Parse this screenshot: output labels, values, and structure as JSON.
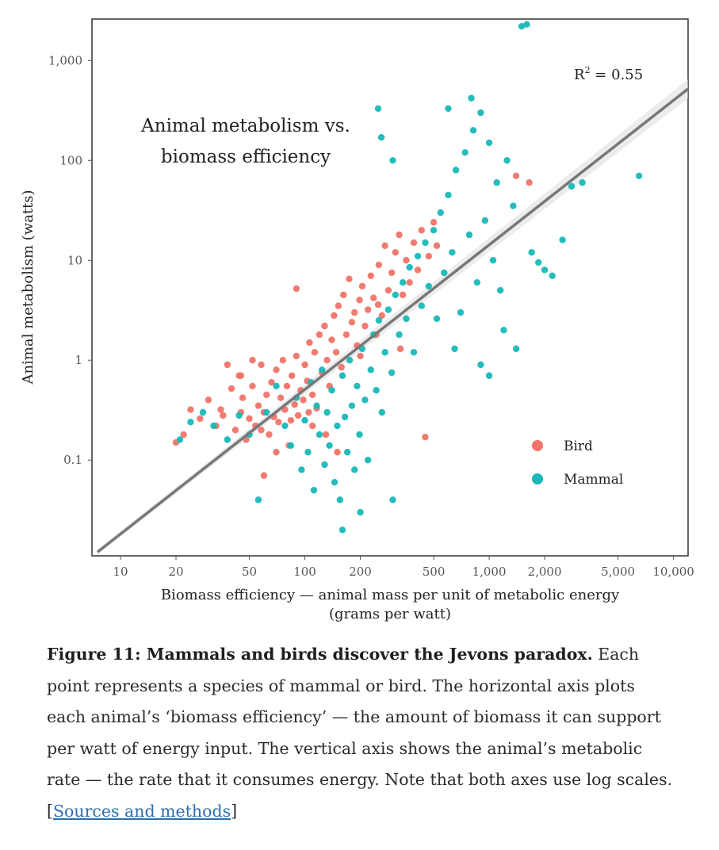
{
  "chart_data": {
    "type": "scatter",
    "title": "Animal metabolism vs. biomass efficiency",
    "title_lines": [
      "Animal metabolism vs.",
      "biomass efficiency"
    ],
    "xlabel": "Biomass efficiency — animal mass per unit of metabolic energy",
    "xlabel_units": "(grams per watt)",
    "ylabel": "Animal metabolism (watts)",
    "x_scale": "log",
    "y_scale": "log",
    "xlim": [
      7,
      12000
    ],
    "ylim": [
      0.011,
      2600
    ],
    "x_ticks": [
      {
        "value": 10,
        "label": "10"
      },
      {
        "value": 20,
        "label": "20"
      },
      {
        "value": 50,
        "label": "50"
      },
      {
        "value": 100,
        "label": "100"
      },
      {
        "value": 200,
        "label": "200"
      },
      {
        "value": 500,
        "label": "500"
      },
      {
        "value": 1000,
        "label": "1,000"
      },
      {
        "value": 2000,
        "label": "2,000"
      },
      {
        "value": 5000,
        "label": "5,000"
      },
      {
        "value": 10000,
        "label": "10,000"
      }
    ],
    "y_ticks": [
      {
        "value": 0.1,
        "label": "0.1"
      },
      {
        "value": 1,
        "label": "1"
      },
      {
        "value": 10,
        "label": "10"
      },
      {
        "value": 100,
        "label": "100"
      },
      {
        "value": 1000,
        "label": "1,000"
      }
    ],
    "annotation": {
      "text": "R² = 0.55",
      "base": "R",
      "sup": "2",
      "rest": " = 0.55"
    },
    "fit_line": {
      "from": [
        7.5,
        0.012
      ],
      "to": [
        12000,
        520
      ]
    },
    "legend": {
      "placement": "bottom-right"
    },
    "grid": false,
    "series": [
      {
        "name": "Bird",
        "color": "#f07468",
        "points": [
          [
            20,
            0.15
          ],
          [
            22,
            0.18
          ],
          [
            24,
            0.32
          ],
          [
            27,
            0.26
          ],
          [
            30,
            0.4
          ],
          [
            33,
            0.22
          ],
          [
            35,
            0.32
          ],
          [
            38,
            0.9
          ],
          [
            40,
            0.52
          ],
          [
            42,
            0.2
          ],
          [
            44,
            0.7
          ],
          [
            45,
            0.3
          ],
          [
            46,
            0.42
          ],
          [
            48,
            0.16
          ],
          [
            50,
            0.26
          ],
          [
            52,
            0.55
          ],
          [
            54,
            0.22
          ],
          [
            56,
            0.35
          ],
          [
            58,
            0.9
          ],
          [
            60,
            0.3
          ],
          [
            62,
            0.45
          ],
          [
            64,
            0.18
          ],
          [
            66,
            0.6
          ],
          [
            68,
            0.27
          ],
          [
            70,
            0.8
          ],
          [
            72,
            0.24
          ],
          [
            74,
            0.42
          ],
          [
            76,
            1.0
          ],
          [
            78,
            0.32
          ],
          [
            80,
            0.55
          ],
          [
            82,
            0.14
          ],
          [
            85,
            0.7
          ],
          [
            88,
            0.36
          ],
          [
            90,
            1.1
          ],
          [
            92,
            0.28
          ],
          [
            95,
            0.5
          ],
          [
            98,
            0.4
          ],
          [
            100,
            0.9
          ],
          [
            103,
            0.62
          ],
          [
            106,
            1.5
          ],
          [
            110,
            0.45
          ],
          [
            113,
            1.2
          ],
          [
            116,
            0.33
          ],
          [
            120,
            1.8
          ],
          [
            124,
            0.75
          ],
          [
            128,
            2.2
          ],
          [
            132,
            1.0
          ],
          [
            136,
            0.55
          ],
          [
            140,
            1.6
          ],
          [
            144,
            2.8
          ],
          [
            148,
            1.2
          ],
          [
            152,
            3.5
          ],
          [
            158,
            0.85
          ],
          [
            162,
            4.5
          ],
          [
            168,
            1.8
          ],
          [
            174,
            6.5
          ],
          [
            180,
            2.4
          ],
          [
            186,
            3.0
          ],
          [
            192,
            1.4
          ],
          [
            198,
            4.0
          ],
          [
            205,
            5.5
          ],
          [
            212,
            2.2
          ],
          [
            220,
            3.2
          ],
          [
            228,
            7.0
          ],
          [
            236,
            4.2
          ],
          [
            244,
            1.8
          ],
          [
            252,
            9.0
          ],
          [
            262,
            2.8
          ],
          [
            272,
            14
          ],
          [
            284,
            5.0
          ],
          [
            296,
            7.5
          ],
          [
            310,
            12
          ],
          [
            325,
            18
          ],
          [
            340,
            4.5
          ],
          [
            355,
            10
          ],
          [
            370,
            6.0
          ],
          [
            390,
            15
          ],
          [
            410,
            8.0
          ],
          [
            430,
            20
          ],
          [
            450,
            0.17
          ],
          [
            470,
            11
          ],
          [
            500,
            24
          ],
          [
            520,
            14
          ],
          [
            90,
            5.2
          ],
          [
            60,
            0.07
          ],
          [
            150,
            0.12
          ],
          [
            52,
            1.0
          ],
          [
            45,
            0.7
          ],
          [
            200,
            1.1
          ],
          [
            250,
            3.6
          ],
          [
            1400,
            70
          ],
          [
            1650,
            60
          ],
          [
            330,
            1.3
          ],
          [
            110,
            0.22
          ],
          [
            130,
            0.18
          ],
          [
            70,
            0.12
          ],
          [
            36,
            0.28
          ],
          [
            58,
            0.2
          ],
          [
            84,
            0.25
          ],
          [
            105,
            0.3
          ]
        ]
      },
      {
        "name": "Mammal",
        "color": "#19b8b8",
        "points": [
          [
            21,
            0.16
          ],
          [
            24,
            0.24
          ],
          [
            28,
            0.3
          ],
          [
            32,
            0.22
          ],
          [
            38,
            0.16
          ],
          [
            44,
            0.28
          ],
          [
            50,
            0.18
          ],
          [
            56,
            0.04
          ],
          [
            62,
            0.3
          ],
          [
            70,
            0.55
          ],
          [
            78,
            0.22
          ],
          [
            84,
            0.14
          ],
          [
            90,
            0.42
          ],
          [
            96,
            0.08
          ],
          [
            100,
            0.25
          ],
          [
            104,
            0.12
          ],
          [
            108,
            0.6
          ],
          [
            112,
            0.05
          ],
          [
            116,
            0.35
          ],
          [
            120,
            0.18
          ],
          [
            124,
            0.8
          ],
          [
            128,
            0.09
          ],
          [
            132,
            0.3
          ],
          [
            136,
            0.14
          ],
          [
            140,
            0.5
          ],
          [
            145,
            0.06
          ],
          [
            150,
            0.22
          ],
          [
            155,
            0.04
          ],
          [
            160,
            0.7
          ],
          [
            165,
            0.27
          ],
          [
            170,
            0.12
          ],
          [
            175,
            1.0
          ],
          [
            180,
            0.35
          ],
          [
            186,
            0.08
          ],
          [
            192,
            0.55
          ],
          [
            198,
            0.18
          ],
          [
            205,
            1.3
          ],
          [
            212,
            0.4
          ],
          [
            220,
            0.1
          ],
          [
            228,
            0.8
          ],
          [
            236,
            1.8
          ],
          [
            244,
            0.5
          ],
          [
            252,
            2.5
          ],
          [
            262,
            0.3
          ],
          [
            272,
            1.2
          ],
          [
            284,
            3.2
          ],
          [
            296,
            0.75
          ],
          [
            310,
            4.5
          ],
          [
            325,
            1.8
          ],
          [
            340,
            6.0
          ],
          [
            355,
            2.6
          ],
          [
            370,
            8.5
          ],
          [
            390,
            1.2
          ],
          [
            410,
            11
          ],
          [
            430,
            3.5
          ],
          [
            450,
            15
          ],
          [
            470,
            5.5
          ],
          [
            500,
            20
          ],
          [
            520,
            2.6
          ],
          [
            545,
            30
          ],
          [
            570,
            7.5
          ],
          [
            600,
            45
          ],
          [
            630,
            12
          ],
          [
            660,
            80
          ],
          [
            700,
            3.0
          ],
          [
            740,
            120
          ],
          [
            780,
            18
          ],
          [
            820,
            200
          ],
          [
            860,
            6.0
          ],
          [
            900,
            300
          ],
          [
            950,
            25
          ],
          [
            1000,
            150
          ],
          [
            1050,
            10
          ],
          [
            1100,
            60
          ],
          [
            1150,
            5.0
          ],
          [
            1250,
            100
          ],
          [
            1350,
            35
          ],
          [
            1500,
            2200
          ],
          [
            1600,
            2300
          ],
          [
            1700,
            12
          ],
          [
            1850,
            9.5
          ],
          [
            2000,
            8.0
          ],
          [
            2200,
            7.0
          ],
          [
            2500,
            16
          ],
          [
            2800,
            55
          ],
          [
            3200,
            60
          ],
          [
            6500,
            70
          ],
          [
            1200,
            2.0
          ],
          [
            1400,
            1.3
          ],
          [
            300,
            0.04
          ],
          [
            200,
            0.03
          ],
          [
            160,
            0.02
          ],
          [
            250,
            330
          ],
          [
            600,
            330
          ],
          [
            800,
            420
          ],
          [
            260,
            170
          ],
          [
            300,
            100
          ],
          [
            650,
            1.3
          ],
          [
            900,
            0.9
          ],
          [
            1000,
            0.7
          ]
        ]
      }
    ]
  },
  "caption": {
    "bold": "Figure 11: Mammals and birds discover the Jevons paradox.",
    "text": " Each point represents a species of mammal or bird. The horizontal axis plots each animal’s ‘biomass efficiency’ — the amount of biomass it can support per watt of energy input. The vertical axis shows the animal’s metabolic rate — the rate that it consumes energy. Note that both axes use log scales. [",
    "link": "Sources and methods",
    "tail": "]"
  }
}
